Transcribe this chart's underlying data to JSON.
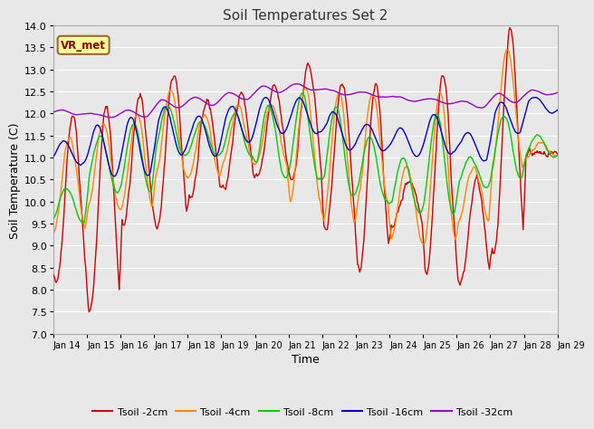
{
  "title": "Soil Temperatures Set 2",
  "xlabel": "Time",
  "ylabel": "Soil Temperature (C)",
  "ylim": [
    7.0,
    14.0
  ],
  "yticks": [
    7.0,
    7.5,
    8.0,
    8.5,
    9.0,
    9.5,
    10.0,
    10.5,
    11.0,
    11.5,
    12.0,
    12.5,
    13.0,
    13.5,
    14.0
  ],
  "x_labels": [
    "Jan 14",
    "Jan 15",
    "Jan 16",
    "Jan 17",
    "Jan 18",
    "Jan 19",
    "Jan 20",
    "Jan 21",
    "Jan 22",
    "Jan 23",
    "Jan 24",
    "Jan 25",
    "Jan 26",
    "Jan 27",
    "Jan 28",
    "Jan 29"
  ],
  "colors": {
    "Tsoil -2cm": "#cc0000",
    "Tsoil -4cm": "#ff8800",
    "Tsoil -8cm": "#00cc00",
    "Tsoil -16cm": "#0000cc",
    "Tsoil -32cm": "#9900cc"
  },
  "line_width": 1.0,
  "bg_color": "#e8e8e8",
  "plot_bg_color": "#e8e8e8",
  "legend_label": "VR_met",
  "legend_bg": "#ffff99",
  "legend_border": "#996633",
  "grid_color": "#ffffff",
  "n_points": 720
}
